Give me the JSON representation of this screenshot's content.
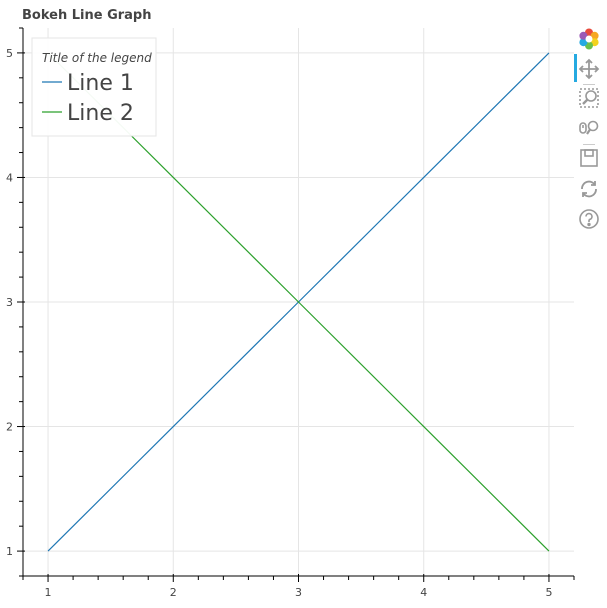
{
  "title": "Bokeh Line Graph",
  "chart_data": {
    "type": "line",
    "title": "Bokeh Line Graph",
    "xlabel": "",
    "ylabel": "",
    "xlim": [
      0.8,
      5.2
    ],
    "ylim": [
      0.8,
      5.2
    ],
    "xticks": [
      1,
      2,
      3,
      4,
      5
    ],
    "yticks": [
      1,
      2,
      3,
      4,
      5
    ],
    "grid": true,
    "legend": {
      "title": "Title of the legend",
      "placement": "top-left"
    },
    "series": [
      {
        "name": "Line 1",
        "color": "#1f77b4",
        "x": [
          1,
          2,
          3,
          4,
          5
        ],
        "y": [
          1,
          2,
          3,
          4,
          5
        ]
      },
      {
        "name": "Line 2",
        "color": "#2ca02c",
        "x": [
          1,
          2,
          3,
          4,
          5
        ],
        "y": [
          5,
          4,
          3,
          2,
          1
        ]
      }
    ]
  },
  "toolbar": {
    "tools": [
      "bokeh-logo-icon",
      "pan-icon",
      "box-zoom-icon",
      "wheel-zoom-icon",
      "save-icon",
      "reset-icon",
      "help-icon"
    ],
    "active_color": "#26aae1"
  }
}
